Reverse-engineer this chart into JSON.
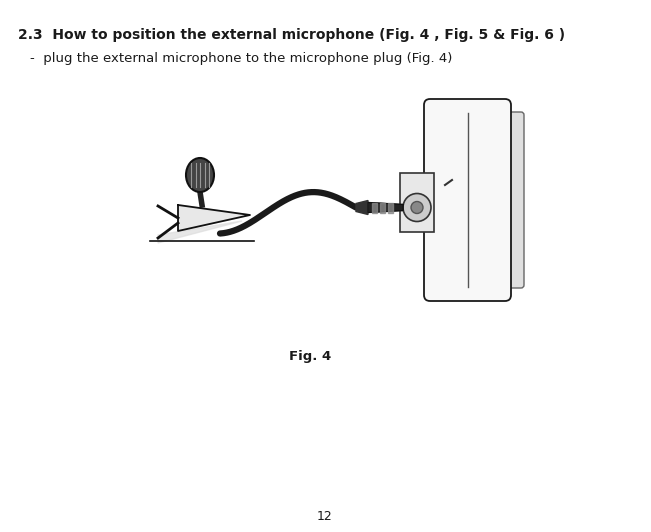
{
  "title_bold": "2.3  How to position the external microphone (Fig. 4 , Fig. 5 & Fig. 6 )",
  "bullet_text": "-  plug the external microphone to the microphone plug (Fig. 4)",
  "fig_caption": "Fig. 4",
  "page_number": "12",
  "bg_color": "#ffffff",
  "text_color": "#1a1a1a",
  "title_fontsize": 10,
  "body_fontsize": 9.5,
  "caption_fontsize": 9.5,
  "page_fontsize": 9
}
